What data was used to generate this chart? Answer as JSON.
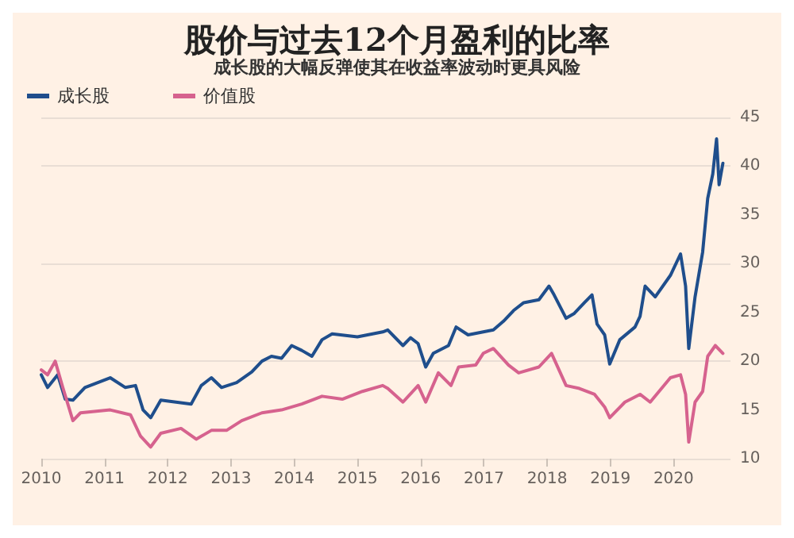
{
  "chart_data": {
    "type": "line",
    "title": "股价与过去12个月盈利的比率",
    "subtitle": "成长股的大幅反弹使其在收益率波动时更具风险",
    "xlim": [
      2010,
      2020.9
    ],
    "xticks": [
      2010,
      2011,
      2012,
      2013,
      2014,
      2015,
      2016,
      2017,
      2018,
      2019,
      2020
    ],
    "ylim": [
      10,
      45
    ],
    "yticks": [
      10,
      15,
      20,
      25,
      30,
      35,
      40,
      45
    ],
    "grid": "y",
    "legend": "top left",
    "series": [
      {
        "name": "成长股",
        "color": "#1f4e8c",
        "x": [
          2010.0,
          2010.1,
          2010.26,
          2010.38,
          2010.5,
          2010.69,
          2011.09,
          2011.33,
          2011.49,
          2011.61,
          2011.73,
          2011.89,
          2012.13,
          2012.37,
          2012.53,
          2012.69,
          2012.85,
          2013.09,
          2013.33,
          2013.49,
          2013.64,
          2013.8,
          2013.96,
          2014.12,
          2014.28,
          2014.44,
          2014.6,
          2015.0,
          2015.4,
          2015.48,
          2015.72,
          2015.84,
          2015.96,
          2016.08,
          2016.2,
          2016.44,
          2016.56,
          2016.75,
          2016.99,
          2017.15,
          2017.31,
          2017.47,
          2017.63,
          2017.87,
          2018.03,
          2018.11,
          2018.3,
          2018.43,
          2018.59,
          2018.71,
          2018.79,
          2018.91,
          2018.99,
          2019.15,
          2019.39,
          2019.47,
          2019.55,
          2019.71,
          2019.95,
          2020.11,
          2020.19,
          2020.24,
          2020.34,
          2020.46,
          2020.54,
          2020.62,
          2020.68,
          2020.72,
          2020.78
        ],
        "values": [
          18.6,
          17.3,
          18.6,
          16.1,
          16.0,
          17.3,
          18.3,
          17.3,
          17.5,
          15.0,
          14.2,
          16.0,
          15.8,
          15.6,
          17.5,
          18.3,
          17.3,
          17.8,
          18.9,
          20.0,
          20.5,
          20.3,
          21.6,
          21.1,
          20.5,
          22.2,
          22.8,
          22.5,
          23.0,
          23.2,
          21.6,
          22.4,
          21.8,
          19.4,
          20.8,
          21.6,
          23.5,
          22.7,
          23.0,
          23.2,
          24.1,
          25.2,
          26.0,
          26.3,
          27.7,
          26.8,
          24.4,
          24.9,
          26.0,
          26.8,
          23.8,
          22.7,
          19.7,
          22.2,
          23.5,
          24.6,
          27.7,
          26.6,
          28.8,
          31.0,
          27.7,
          21.3,
          26.6,
          31.2,
          36.7,
          39.2,
          42.8,
          38.1,
          40.3
        ]
      },
      {
        "name": "价值股",
        "color": "#d6628e",
        "x": [
          2010.0,
          2010.1,
          2010.22,
          2010.34,
          2010.5,
          2010.62,
          2011.09,
          2011.41,
          2011.57,
          2011.73,
          2011.89,
          2012.21,
          2012.45,
          2012.69,
          2012.93,
          2013.17,
          2013.49,
          2013.8,
          2014.12,
          2014.44,
          2014.76,
          2015.08,
          2015.4,
          2015.48,
          2015.72,
          2015.96,
          2016.08,
          2016.28,
          2016.48,
          2016.6,
          2016.87,
          2016.99,
          2017.15,
          2017.39,
          2017.55,
          2017.87,
          2018.07,
          2018.3,
          2018.51,
          2018.75,
          2018.91,
          2018.99,
          2019.23,
          2019.47,
          2019.63,
          2019.95,
          2020.11,
          2020.19,
          2020.24,
          2020.34,
          2020.46,
          2020.54,
          2020.66,
          2020.78
        ],
        "values": [
          19.1,
          18.6,
          20.0,
          17.3,
          13.9,
          14.7,
          15.0,
          14.5,
          12.3,
          11.2,
          12.6,
          13.1,
          12.0,
          12.9,
          12.9,
          13.9,
          14.7,
          15.0,
          15.6,
          16.4,
          16.1,
          16.9,
          17.5,
          17.2,
          15.8,
          17.5,
          15.8,
          18.8,
          17.5,
          19.4,
          19.6,
          20.8,
          21.3,
          19.6,
          18.8,
          19.4,
          20.8,
          17.5,
          17.2,
          16.6,
          15.3,
          14.2,
          15.8,
          16.6,
          15.8,
          18.3,
          18.6,
          16.6,
          11.7,
          15.8,
          16.9,
          20.5,
          21.6,
          20.8
        ]
      }
    ]
  }
}
